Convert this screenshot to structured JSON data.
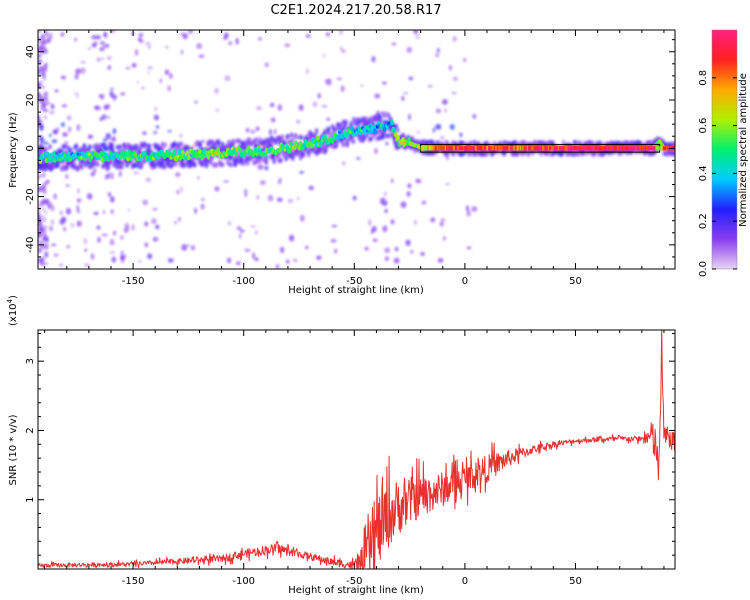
{
  "title": "C2E1.2024.217.20.58.R17",
  "chart_data": [
    {
      "type": "heatmap",
      "xlabel": "Height of straight line (km)",
      "ylabel": "Frequency (Hz)",
      "xlim": [
        -193,
        95
      ],
      "ylim": [
        -50,
        49
      ],
      "x_ticks": [
        "-150",
        "-100",
        "-50",
        "0",
        "50"
      ],
      "y_ticks": [
        "-40",
        "-20",
        "0",
        "20",
        "40"
      ],
      "x_tick_values": [
        -150,
        -100,
        -50,
        0,
        50
      ],
      "y_tick_values": [
        -40,
        -20,
        0,
        20,
        40
      ],
      "colorbar": {
        "label": "Normalized spectral amplitude",
        "range": [
          0,
          1
        ],
        "ticks": [
          "0.0",
          "0.2",
          "0.4",
          "0.6",
          "0.8"
        ],
        "tick_values": [
          0.0,
          0.2,
          0.4,
          0.6,
          0.8
        ],
        "colors": [
          "#e8d2f5",
          "#8a3df0",
          "#2020ff",
          "#00ccff",
          "#00f070",
          "#b0f000",
          "#ffaa00",
          "#ff2020",
          "#ff2080"
        ]
      },
      "ridge": {
        "x": [
          -193,
          -170,
          -150,
          -130,
          -110,
          -90,
          -75,
          -65,
          -55,
          -45,
          -38,
          -33,
          -30,
          -28,
          -25,
          -20,
          -10,
          0,
          10,
          25,
          50,
          85,
          88,
          90,
          95
        ],
        "y": [
          -4,
          -3.5,
          -3.2,
          -2.8,
          -2,
          -1,
          1,
          3,
          6,
          8,
          9,
          10,
          3,
          3,
          2,
          0.5,
          0,
          0,
          0,
          0,
          0,
          0,
          3,
          0,
          0
        ],
        "amplitude": [
          0.5,
          0.45,
          0.5,
          0.55,
          0.6,
          0.6,
          0.55,
          0.5,
          0.45,
          0.4,
          0.4,
          0.3,
          0.75,
          0.8,
          0.6,
          0.65,
          0.85,
          0.9,
          0.85,
          0.8,
          0.95,
          0.95,
          0.5,
          0.9,
          0.9
        ]
      }
    },
    {
      "type": "line",
      "xlabel": "Height of straight line (km)",
      "ylabel": "SNR (10 * v/v)",
      "multiplier": "(x10",
      "multiplier_exp": "4",
      "multiplier_close": ")",
      "xlim": [
        -193,
        95
      ],
      "ylim": [
        0,
        3.45
      ],
      "x_ticks": [
        "-150",
        "-100",
        "-50",
        "0",
        "50"
      ],
      "y_ticks": [
        "1",
        "2",
        "3"
      ],
      "x_tick_values": [
        -150,
        -100,
        -50,
        0,
        50
      ],
      "y_tick_values": [
        1,
        2,
        3
      ],
      "color": "#e8302e",
      "trend": {
        "x": [
          -193,
          -150,
          -110,
          -100,
          -85,
          -75,
          -60,
          -50,
          -45,
          -40,
          -35,
          -30,
          -20,
          -10,
          0,
          10,
          20,
          30,
          40,
          50,
          60,
          70,
          80,
          85,
          88,
          89,
          90,
          92,
          95
        ],
        "y": [
          0.05,
          0.07,
          0.15,
          0.22,
          0.3,
          0.22,
          0.1,
          0.05,
          0.15,
          0.5,
          0.75,
          0.9,
          1.05,
          1.15,
          1.3,
          1.45,
          1.6,
          1.72,
          1.8,
          1.85,
          1.87,
          1.88,
          1.88,
          1.9,
          1.5,
          3.3,
          1.9,
          1.9,
          1.85
        ]
      },
      "noise": {
        "x": [
          -193,
          -150,
          -110,
          -90,
          -70,
          -50,
          -45,
          -40,
          -30,
          -20,
          -10,
          0,
          10,
          20,
          30,
          50,
          80,
          86,
          92,
          95
        ],
        "y": [
          0.03,
          0.03,
          0.05,
          0.07,
          0.05,
          0.06,
          0.25,
          0.55,
          0.4,
          0.3,
          0.25,
          0.2,
          0.2,
          0.12,
          0.06,
          0.03,
          0.04,
          0.3,
          0.15,
          0.1
        ]
      }
    }
  ]
}
